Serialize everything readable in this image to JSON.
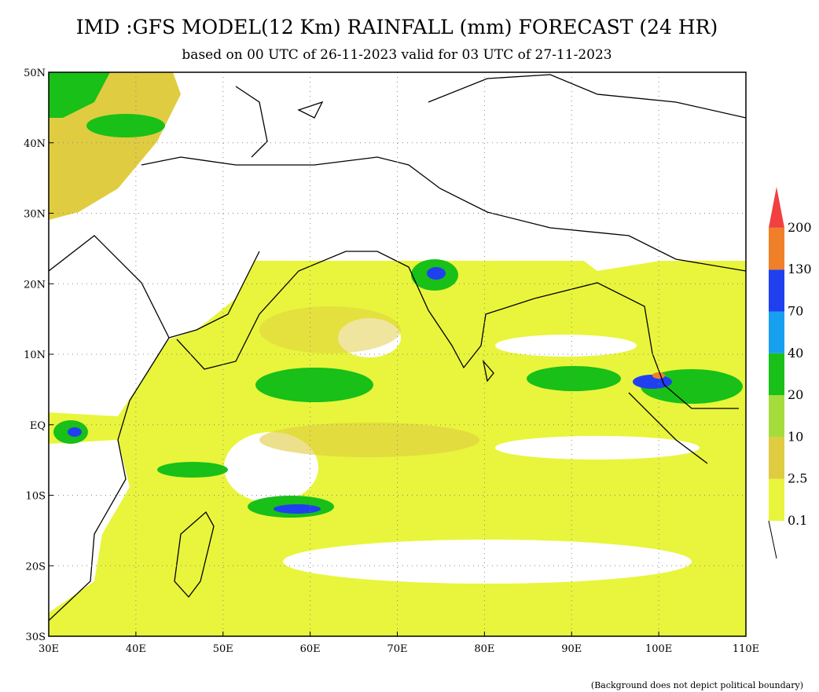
{
  "header": {
    "title": "IMD :GFS MODEL(12 Km) RAINFALL (mm) FORECAST (24 HR)",
    "subtitle": "based on 00 UTC of 26-11-2023 valid for 03 UTC of 27-11-2023"
  },
  "map": {
    "xticks": [
      "30E",
      "40E",
      "50E",
      "60E",
      "70E",
      "80E",
      "90E",
      "100E",
      "110E"
    ],
    "yticks": [
      "50N",
      "40N",
      "30N",
      "20N",
      "10N",
      "EQ",
      "10S",
      "20S",
      "30S"
    ]
  },
  "legend": {
    "levels": [
      "0.1",
      "2.5",
      "10",
      "20",
      "40",
      "70",
      "130",
      "200"
    ],
    "colors": [
      "#e8f53c",
      "#e0cc40",
      "#a4dc3c",
      "#18c018",
      "#18a0f0",
      "#2040f0",
      "#f08028",
      "#f04040"
    ]
  },
  "footnote": "(Background does not depict political boundary)"
}
